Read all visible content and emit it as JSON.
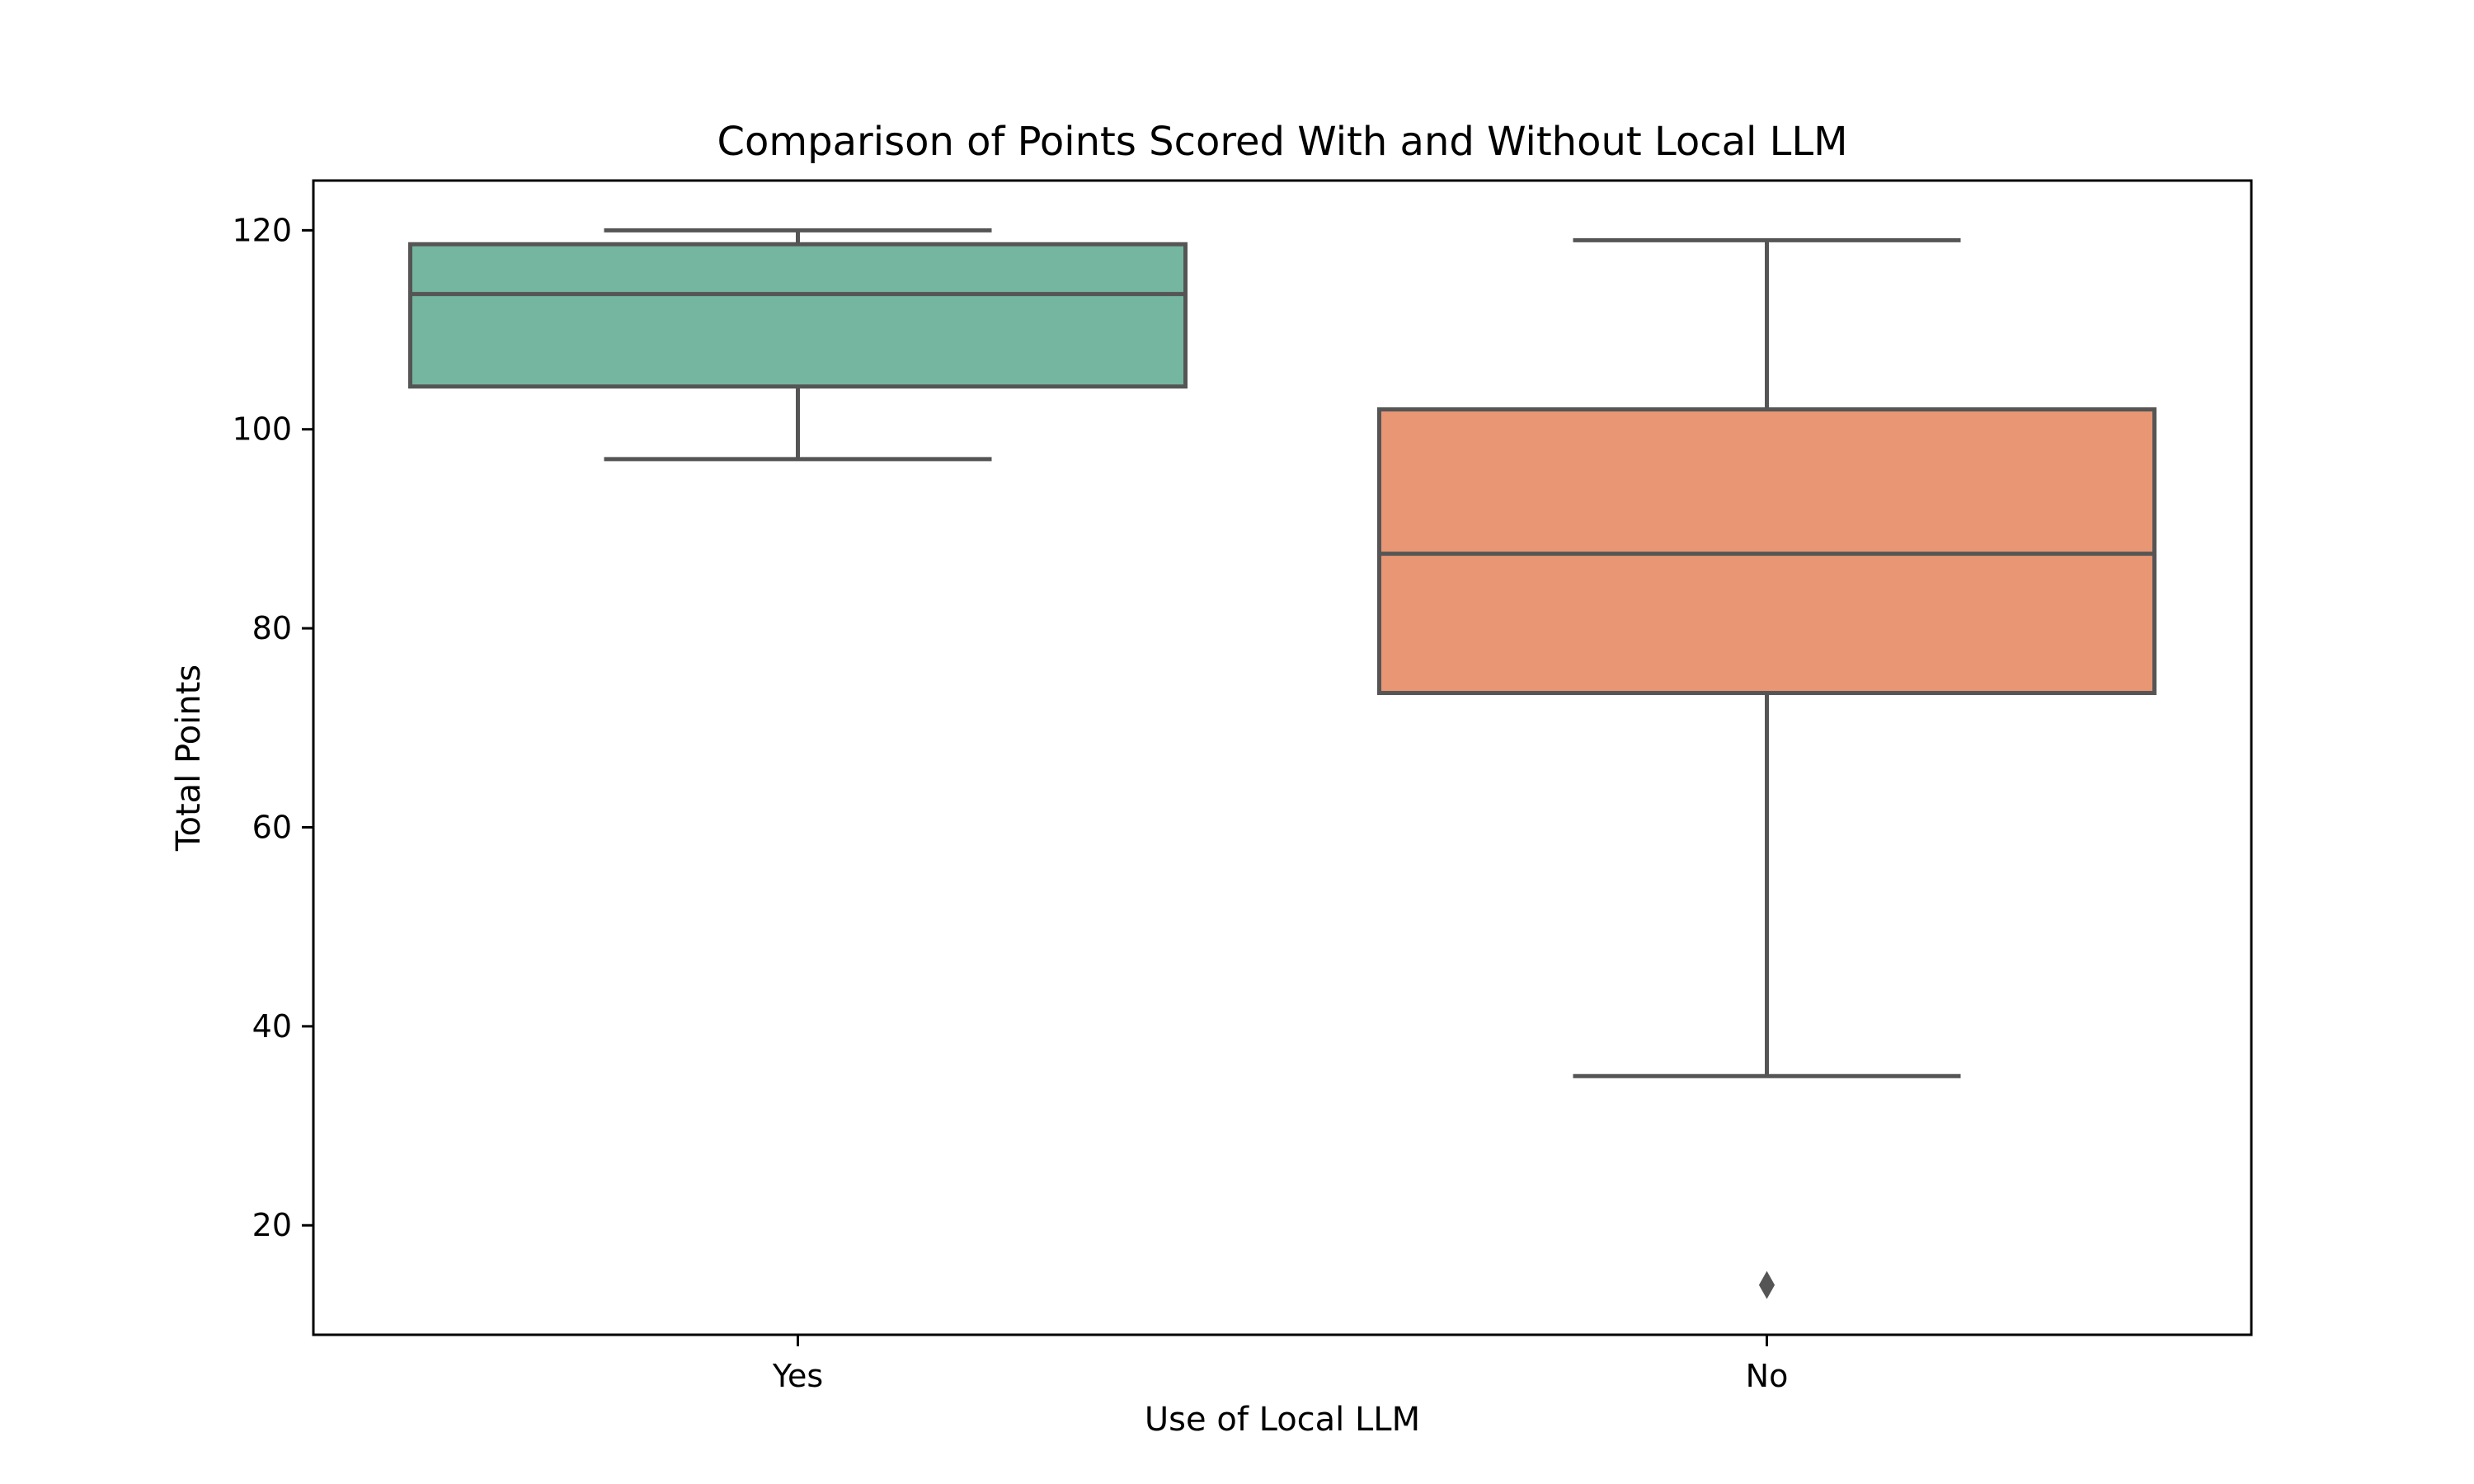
{
  "chart_data": {
    "type": "box",
    "title": "Comparison of Points Scored With and Without Local LLM",
    "xlabel": "Use of Local LLM",
    "ylabel": "Total Points",
    "categories": [
      "Yes",
      "No"
    ],
    "ylim": [
      9,
      125
    ],
    "yticks": [
      20,
      40,
      60,
      80,
      100,
      120
    ],
    "grid": false,
    "series": [
      {
        "category": "Yes",
        "color": "#74b6a0",
        "whisker_low": 97,
        "q1": 104.3,
        "median": 113.6,
        "q3": 118.6,
        "whisker_high": 120,
        "outliers": []
      },
      {
        "category": "No",
        "color": "#e89673",
        "whisker_low": 35,
        "q1": 73.5,
        "median": 87.5,
        "q3": 102,
        "whisker_high": 119,
        "outliers": [
          14
        ]
      }
    ],
    "edge_color": "#555555"
  }
}
